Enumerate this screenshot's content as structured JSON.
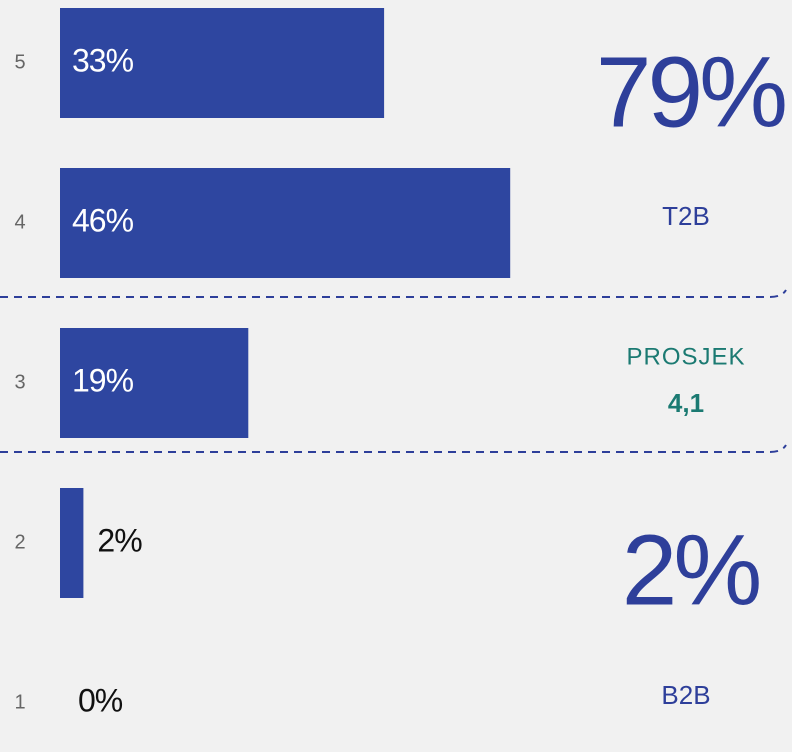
{
  "chart_data": {
    "type": "bar",
    "orientation": "horizontal",
    "categories": [
      "5",
      "4",
      "3",
      "2",
      "1"
    ],
    "values": [
      33,
      46,
      19,
      2,
      0
    ],
    "value_labels": [
      "33%",
      "46%",
      "19%",
      "2%",
      "0%"
    ],
    "color": "#2e46a0",
    "annotations": {
      "t2b_value": "79%",
      "t2b_label": "T2B",
      "mean_label": "PROSJEK",
      "mean_value": "4,1",
      "b2b_value": "2%",
      "b2b_label": "B2B"
    }
  }
}
